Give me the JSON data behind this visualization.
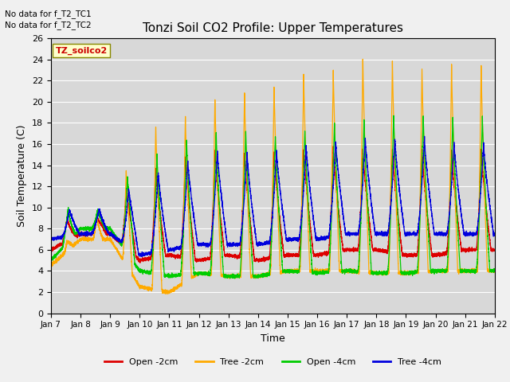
{
  "title": "Tonzi Soil CO2 Profile: Upper Temperatures",
  "xlabel": "Time",
  "ylabel": "Soil Temperature (C)",
  "ylim": [
    0,
    26
  ],
  "no_data_text1": "No data for f_T2_TC1",
  "no_data_text2": "No data for f_T2_TC2",
  "legend_box_label": "TZ_soilco2",
  "xtick_labels": [
    "Jan 7",
    "Jan 8",
    "Jan 9",
    "Jan 10",
    "Jan 11",
    "Jan 12",
    "Jan 13",
    "Jan 14",
    "Jan 15",
    "Jan 16",
    "Jan 17",
    "Jan 18",
    "Jan 19",
    "Jan 20",
    "Jan 21",
    "Jan 22"
  ],
  "legend_entries": [
    "Open -2cm",
    "Tree -2cm",
    "Open -4cm",
    "Tree -4cm"
  ],
  "line_colors": [
    "#dd0000",
    "#ffaa00",
    "#00cc00",
    "#0000dd"
  ],
  "fig_facecolor": "#f0f0f0",
  "plot_facecolor": "#d8d8d8",
  "grid_color": "#ffffff"
}
